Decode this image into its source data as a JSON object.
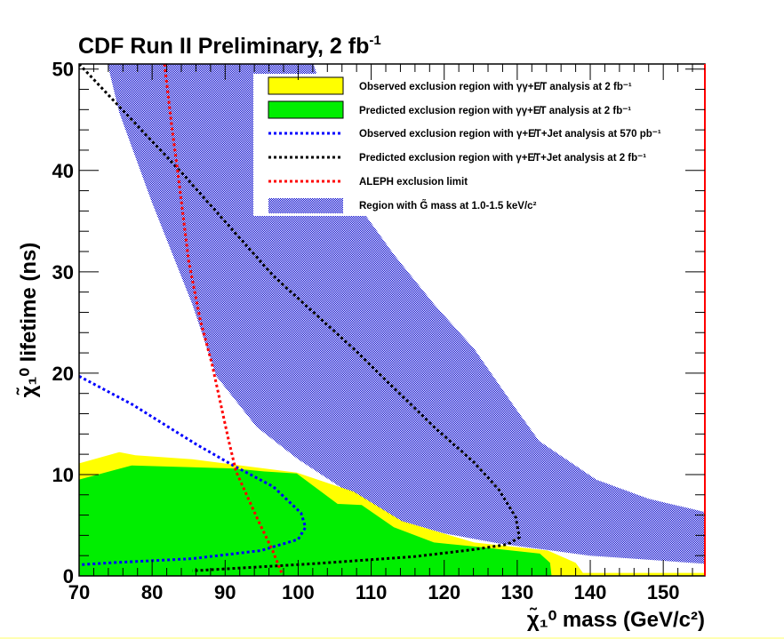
{
  "chart_data": {
    "type": "area",
    "title": "CDF Run II Preliminary, 2 fb",
    "title_sup": "-1",
    "xlabel": "χ̃₁⁰ mass (GeV/c²)",
    "ylabel": "χ̃₁⁰ lifetime (ns)",
    "xlim": [
      70,
      155.7
    ],
    "ylim": [
      0,
      50.5
    ],
    "xticks": [
      70,
      80,
      90,
      100,
      110,
      120,
      130,
      140,
      150
    ],
    "yticks": [
      0,
      10,
      20,
      30,
      40,
      50
    ],
    "grid": false,
    "legend_position": "top-right",
    "colors": {
      "observed": "#ffff00",
      "predicted": "#00ee00",
      "blue": "#0000ff",
      "black": "#000000",
      "red": "#ff0000",
      "hatch": "#0000cc"
    },
    "series": [
      {
        "name": "Region with G̃ mass at 1.0-1.5 keV/c²",
        "kind": "band",
        "lower": [
          [
            73.9,
            50.5
          ],
          [
            75.5,
            45.7
          ],
          [
            79.9,
            37.0
          ],
          [
            85.5,
            26.8
          ],
          [
            88.8,
            19.7
          ],
          [
            94.3,
            14.7
          ],
          [
            100,
            11.5
          ],
          [
            107,
            8.2
          ],
          [
            114.2,
            5.4
          ],
          [
            120,
            4.2
          ],
          [
            127.5,
            3.2
          ],
          [
            140,
            2.0
          ],
          [
            155.7,
            1.2
          ]
        ],
        "upper": [
          [
            102.1,
            50.5
          ],
          [
            105,
            44
          ],
          [
            109.3,
            35.5
          ],
          [
            113.1,
            31.7
          ],
          [
            118.6,
            26.8
          ],
          [
            124.1,
            22.4
          ],
          [
            129.8,
            16.5
          ],
          [
            133.0,
            13.3
          ],
          [
            140.8,
            9.5
          ],
          [
            148,
            7.6
          ],
          [
            155.7,
            6.3
          ]
        ]
      },
      {
        "name": "Observed exclusion region with γγ+E̸T analysis at 2 fb⁻¹",
        "kind": "fill",
        "points": [
          [
            70,
            0
          ],
          [
            70,
            11.1
          ],
          [
            75.5,
            12.2
          ],
          [
            77.7,
            11.9
          ],
          [
            85.5,
            11.5
          ],
          [
            99.8,
            10.2
          ],
          [
            107.6,
            8.3
          ],
          [
            114.2,
            5.4
          ],
          [
            124.1,
            3.3
          ],
          [
            134.2,
            2.5
          ],
          [
            138.0,
            1.3
          ],
          [
            139,
            0.3
          ],
          [
            155.7,
            0.3
          ],
          [
            155.7,
            0
          ],
          [
            70,
            0
          ]
        ]
      },
      {
        "name": "Predicted exclusion region with γγ+E̸T analysis at 2 fb⁻¹",
        "kind": "fill",
        "points": [
          [
            70,
            0
          ],
          [
            70,
            9.5
          ],
          [
            77.2,
            10.9
          ],
          [
            91.1,
            10.6
          ],
          [
            95.4,
            10.3
          ],
          [
            99.8,
            10.1
          ],
          [
            105.4,
            7.1
          ],
          [
            108.7,
            7.0
          ],
          [
            113.1,
            4.8
          ],
          [
            118.6,
            3.3
          ],
          [
            124.1,
            2.9
          ],
          [
            133.1,
            2.2
          ],
          [
            134.5,
            1.3
          ],
          [
            134.7,
            0
          ],
          [
            70,
            0
          ]
        ]
      },
      {
        "name": "Observed exclusion region with γ+E̸T+Jet analysis at 570 pb⁻¹",
        "kind": "line",
        "points": [
          [
            70,
            19.7
          ],
          [
            77.3,
            16.9
          ],
          [
            82.2,
            14.7
          ],
          [
            86,
            13.0
          ],
          [
            91.1,
            10.9
          ],
          [
            96.6,
            8.8
          ],
          [
            100.4,
            6.2
          ],
          [
            101.0,
            4.8
          ],
          [
            100.0,
            3.6
          ],
          [
            94.9,
            2.5
          ],
          [
            85.5,
            1.7
          ],
          [
            74.4,
            1.3
          ],
          [
            70,
            1.1
          ]
        ]
      },
      {
        "name": "Predicted exclusion region with γ+E̸T+Jet analysis at 2 fb⁻¹",
        "kind": "line",
        "points": [
          [
            70,
            50.5
          ],
          [
            75.5,
            46.3
          ],
          [
            83.9,
            39.9
          ],
          [
            96.6,
            29.6
          ],
          [
            107.6,
            22.4
          ],
          [
            118.6,
            14.7
          ],
          [
            124.1,
            11.2
          ],
          [
            127.5,
            8.5
          ],
          [
            129.8,
            5.8
          ],
          [
            130.3,
            3.8
          ],
          [
            128.6,
            3.1
          ],
          [
            124.1,
            2.6
          ],
          [
            115.9,
            1.9
          ],
          [
            102.1,
            1.2
          ],
          [
            85.5,
            0.5
          ]
        ]
      },
      {
        "name": "ALEPH exclusion limit",
        "kind": "line",
        "points": [
          [
            81.7,
            50.5
          ],
          [
            82.7,
            44.3
          ],
          [
            83.5,
            39.9
          ],
          [
            85.0,
            31.1
          ],
          [
            86.6,
            25.2
          ],
          [
            88.2,
            20.9
          ],
          [
            90.5,
            13.3
          ],
          [
            91.5,
            10.3
          ],
          [
            94.5,
            5.5
          ],
          [
            96.5,
            2.5
          ],
          [
            97.9,
            0
          ]
        ]
      }
    ]
  }
}
